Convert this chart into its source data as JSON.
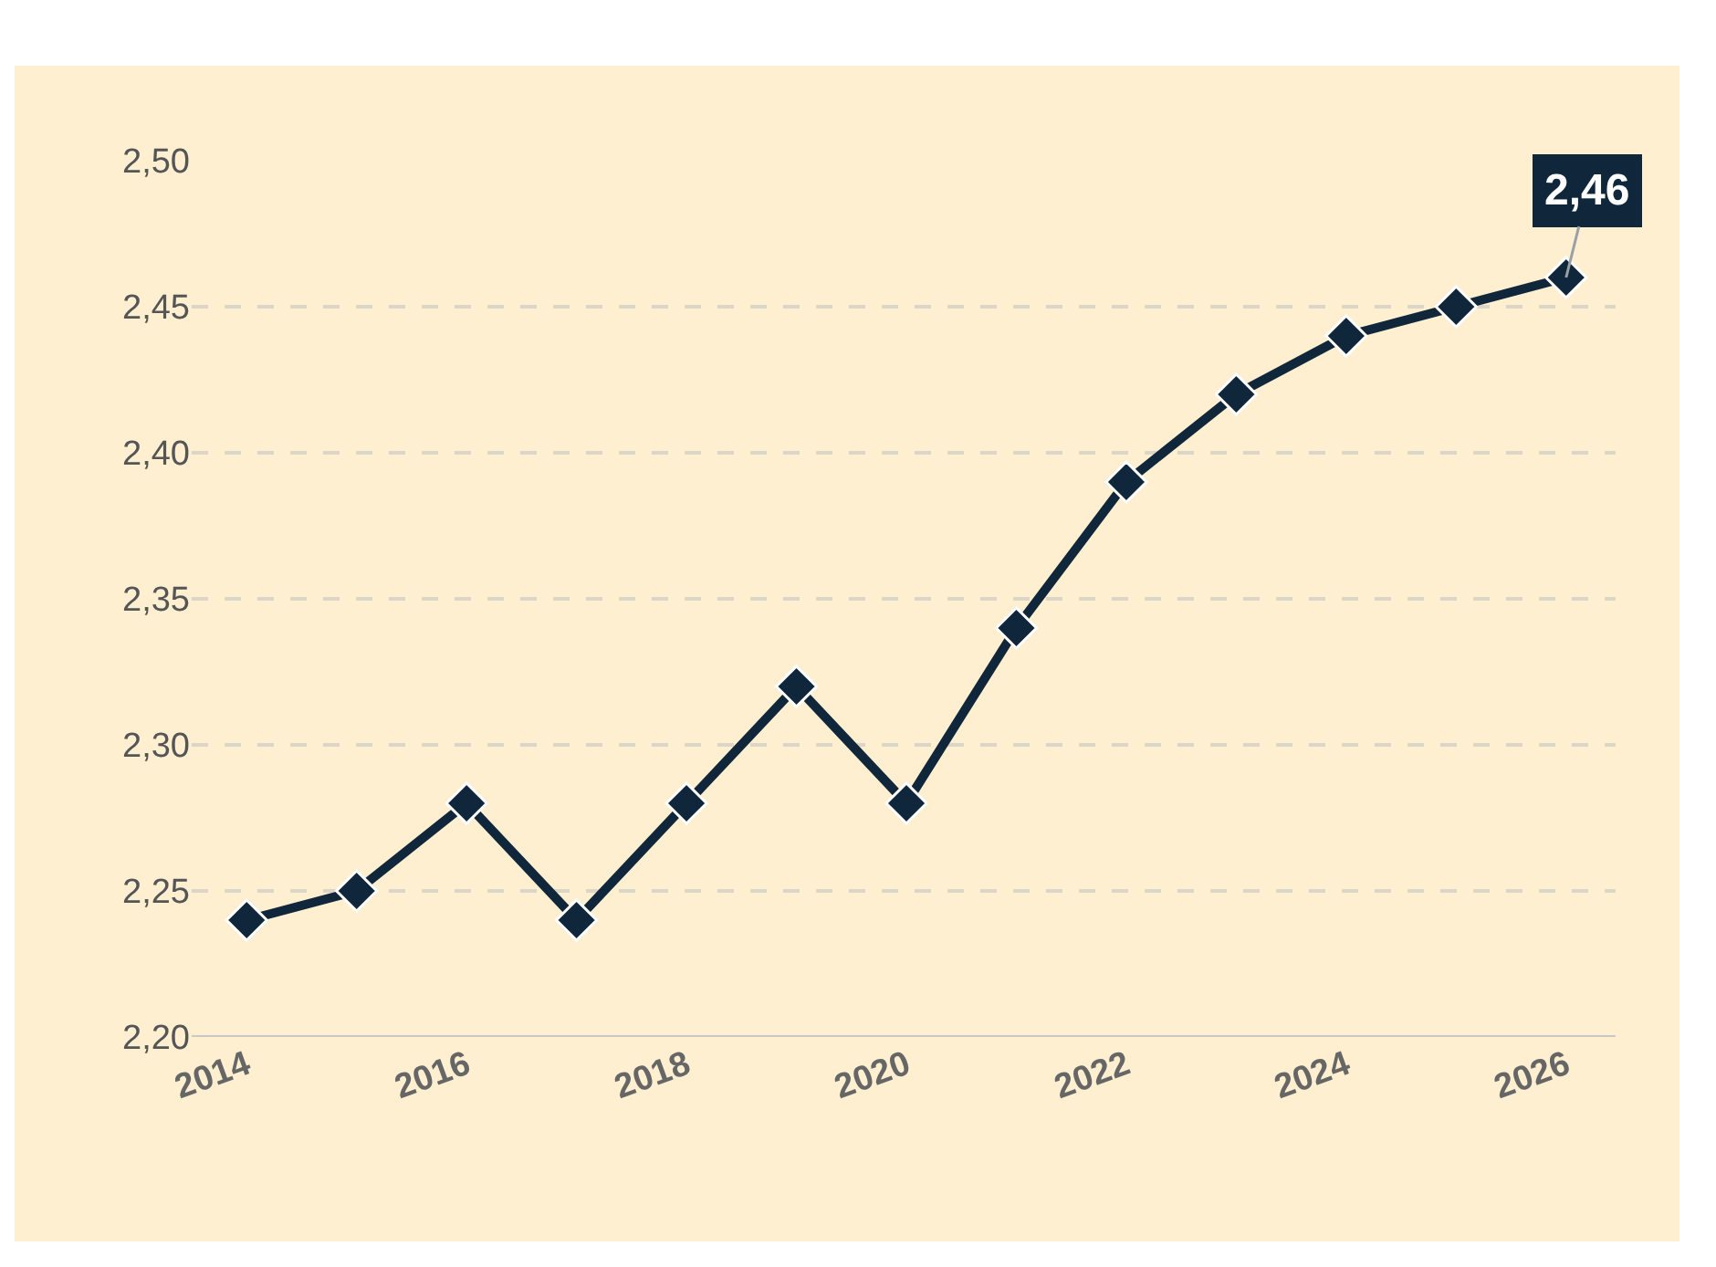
{
  "chart_data": {
    "type": "line",
    "x": [
      2014,
      2015,
      2016,
      2017,
      2018,
      2019,
      2020,
      2021,
      2022,
      2023,
      2024,
      2025,
      2026
    ],
    "series": [
      {
        "color": "#10263a",
        "values": [
          2.24,
          2.25,
          2.28,
          2.24,
          2.28,
          2.32,
          2.28,
          2.34,
          2.39,
          2.42,
          2.44,
          2.45,
          2.46
        ]
      }
    ],
    "xlim": [
      2013.5,
      2026.45
    ],
    "xticks": [
      2014,
      2016,
      2018,
      2020,
      2022,
      2024,
      2026
    ],
    "ylim": [
      2.2,
      2.5
    ],
    "yticks": [
      {
        "value": 2.2,
        "label": "2,20"
      },
      {
        "value": 2.25,
        "label": "2,25"
      },
      {
        "value": 2.3,
        "label": "2,30"
      },
      {
        "value": 2.35,
        "label": "2,35"
      },
      {
        "value": 2.4,
        "label": "2,40"
      },
      {
        "value": 2.45,
        "label": "2,45"
      },
      {
        "value": 2.5,
        "label": "2,50"
      }
    ],
    "grid": "y",
    "marker": "diamond",
    "line_style": "solid",
    "annotations": [
      {
        "text": "2,46",
        "x": 2026,
        "y": 2.46
      }
    ]
  }
}
